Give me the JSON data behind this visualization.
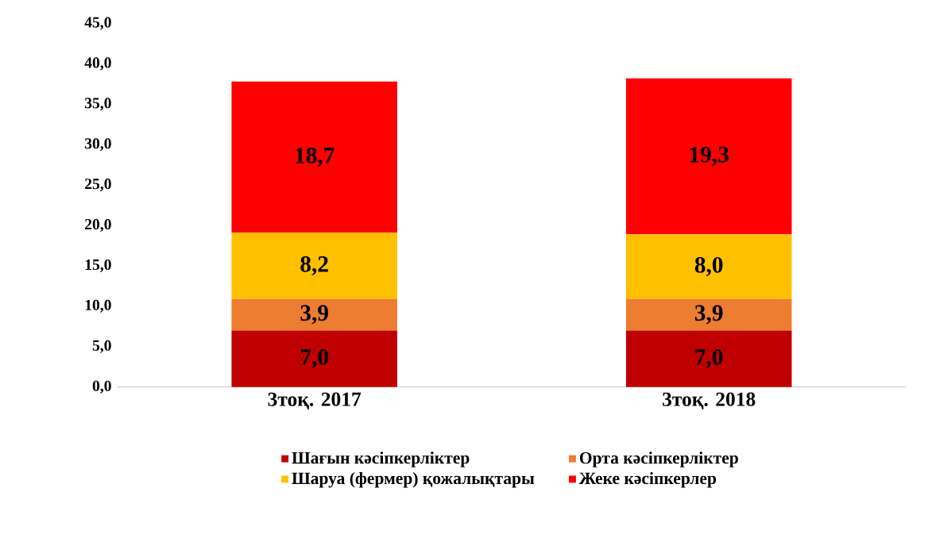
{
  "chart_data": {
    "type": "bar",
    "stacked": true,
    "categories": [
      "3тоқ. 2017",
      "3тоқ. 2018"
    ],
    "series": [
      {
        "name": "Шағын кәсіпкерліктер",
        "color": "#c00000",
        "values": [
          7.0,
          7.0
        ],
        "value_labels": [
          "7,0",
          "7,0"
        ]
      },
      {
        "name": "Орта кәсіпкерліктер",
        "color": "#ed7d31",
        "values": [
          3.9,
          3.9
        ],
        "value_labels": [
          "3,9",
          "3,9"
        ]
      },
      {
        "name": "Шаруа (фермер) қожалықтары",
        "color": "#ffc000",
        "values": [
          8.2,
          8.0
        ],
        "value_labels": [
          "8,2",
          "8,0"
        ]
      },
      {
        "name": "Жеке кәсіпкерлер",
        "color": "#ff0000",
        "values": [
          18.7,
          19.3
        ],
        "value_labels": [
          "18,7",
          "19,3"
        ]
      }
    ],
    "ylim": [
      0,
      45
    ],
    "yticks": [
      {
        "value": 0,
        "label": "0,0"
      },
      {
        "value": 5,
        "label": "5,0"
      },
      {
        "value": 10,
        "label": "10,0"
      },
      {
        "value": 15,
        "label": "15,0"
      },
      {
        "value": 20,
        "label": "20,0"
      },
      {
        "value": 25,
        "label": "25,0"
      },
      {
        "value": 30,
        "label": "30,0"
      },
      {
        "value": 35,
        "label": "35,0"
      },
      {
        "value": 40,
        "label": "40,0"
      },
      {
        "value": 45,
        "label": "45,0"
      }
    ],
    "legend": "bottom"
  }
}
